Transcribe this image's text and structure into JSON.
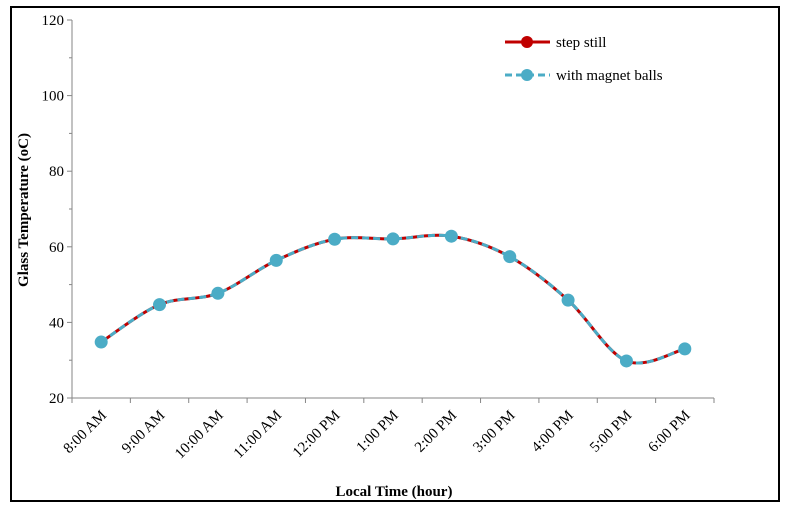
{
  "chart_data": {
    "type": "line",
    "title": "",
    "xlabel": "Local Time (hour)",
    "ylabel": "Glass Temperature (oC)",
    "ylim": [
      20,
      120
    ],
    "yticks": [
      20,
      40,
      60,
      80,
      100,
      120
    ],
    "categories": [
      "8:00 AM",
      "9:00 AM",
      "10:00 AM",
      "11:00 AM",
      "12:00 PM",
      "1:00 PM",
      "2:00 PM",
      "3:00 PM",
      "4:00 PM",
      "5:00 PM",
      "6:00 PM"
    ],
    "grid": false,
    "legend_position": "top-right",
    "series": [
      {
        "name": "step still",
        "color": "#c00000",
        "values": [
          34.8,
          44.7,
          47.7,
          56.4,
          62.0,
          62.1,
          62.8,
          57.4,
          45.9,
          29.8,
          33.0
        ]
      },
      {
        "name": "with magnet balls",
        "color": "#4bacc6",
        "values": [
          34.8,
          44.7,
          47.7,
          56.4,
          62.0,
          62.1,
          62.8,
          57.4,
          45.9,
          29.8,
          33.0
        ]
      }
    ]
  }
}
